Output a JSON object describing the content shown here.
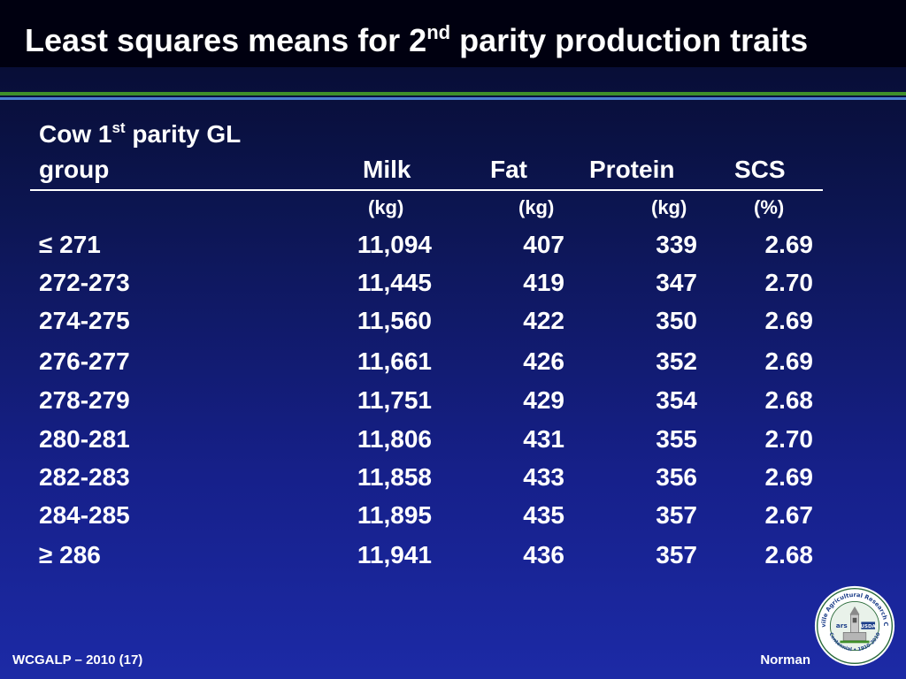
{
  "slide": {
    "title_pre": "Least squares means for 2",
    "title_sup": "nd",
    "title_post": " parity production traits"
  },
  "table": {
    "group_header_line1_pre": "Cow 1",
    "group_header_line1_sup": "st",
    "group_header_line1_post": " parity GL",
    "group_header_line2": "group",
    "columns": [
      "Milk",
      "Fat",
      "Protein",
      "SCS"
    ],
    "units": [
      "(kg)",
      "(kg)",
      "(kg)",
      "(%)"
    ],
    "rows": [
      {
        "group": "≤ 271",
        "milk": "11,094",
        "fat": "407",
        "protein": "339",
        "scs": "2.69"
      },
      {
        "group": "272-273",
        "milk": "11,445",
        "fat": "419",
        "protein": "347",
        "scs": "2.70"
      },
      {
        "group": "274-275",
        "milk": "11,560",
        "fat": "422",
        "protein": "350",
        "scs": "2.69"
      },
      {
        "group": "276-277",
        "milk": "11,661",
        "fat": "426",
        "protein": "352",
        "scs": "2.69"
      },
      {
        "group": "278-279",
        "milk": "11,751",
        "fat": "429",
        "protein": "354",
        "scs": "2.68"
      },
      {
        "group": "280-281",
        "milk": "11,806",
        "fat": "431",
        "protein": "355",
        "scs": "2.70"
      },
      {
        "group": "282-283",
        "milk": "11,858",
        "fat": "433",
        "protein": "356",
        "scs": "2.69"
      },
      {
        "group": "284-285",
        "milk": "11,895",
        "fat": "435",
        "protein": "357",
        "scs": "2.67"
      },
      {
        "group": "≥ 286",
        "milk": "11,941",
        "fat": "436",
        "protein": "357",
        "scs": "2.68"
      }
    ]
  },
  "footer": {
    "left": "WCGALP – 2010 (17)",
    "right": "Norman"
  },
  "logo": {
    "name": "beltsville-agricultural-research-center-seal",
    "ring_text": "Beltsville Agricultural Research Center",
    "bottom_text": "Centennial • 1910-2010",
    "badge": "USDA",
    "ars": "ars"
  },
  "colors": {
    "background_top": "#060a2a",
    "background_bottom": "#1c2aa6",
    "title_bar": "#000010",
    "rule_green": "#3f8f2a",
    "rule_blue": "#4a7fd0",
    "text": "#ffffff"
  }
}
